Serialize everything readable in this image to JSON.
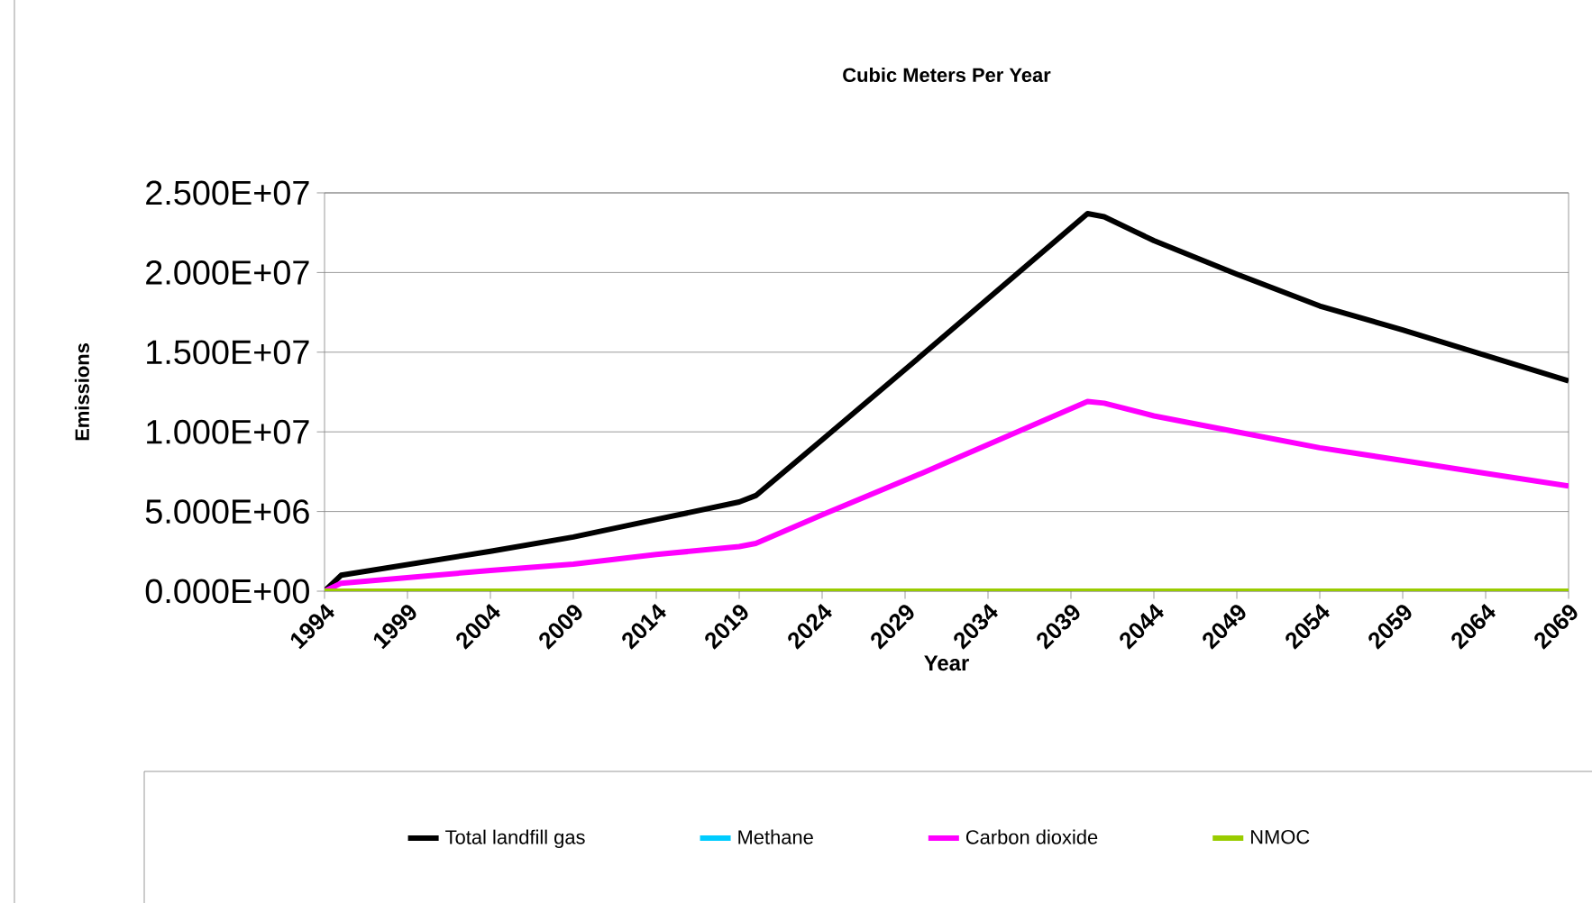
{
  "chart_data": {
    "type": "line",
    "title": "Cubic Meters Per Year",
    "xlabel": "Year",
    "ylabel": "Emissions",
    "xlim": [
      1994,
      2069
    ],
    "xticks": [
      1994,
      1999,
      2004,
      2009,
      2014,
      2019,
      2024,
      2029,
      2034,
      2039,
      2044,
      2049,
      2054,
      2059,
      2064,
      2069
    ],
    "ylim": [
      0,
      25000000
    ],
    "yticks": [
      {
        "value": 0,
        "label": "0.000E+00"
      },
      {
        "value": 5000000,
        "label": "5.000E+06"
      },
      {
        "value": 10000000,
        "label": "1.000E+07"
      },
      {
        "value": 15000000,
        "label": "1.500E+07"
      },
      {
        "value": 20000000,
        "label": "2.000E+07"
      },
      {
        "value": 25000000,
        "label": "2.500E+07"
      }
    ],
    "grid": "y",
    "legend": "bottom",
    "marker": "none",
    "line_style": "solid",
    "series": [
      {
        "name": "Total landfill gas",
        "color": "#000000",
        "x": [
          1994,
          1995,
          2004,
          2009,
          2014,
          2019,
          2020,
          2024,
          2030,
          2040,
          2041,
          2044,
          2049,
          2054,
          2059,
          2064,
          2069
        ],
        "values": [
          0,
          1000000,
          2500000,
          3400000,
          4500000,
          5600000,
          6000000,
          9500000,
          14800000,
          23700000,
          23500000,
          22000000,
          19900000,
          17900000,
          16400000,
          14800000,
          13200000
        ]
      },
      {
        "name": "Methane",
        "color": "#00ccff"
      },
      {
        "name": "Carbon dioxide",
        "color": "#ff00ff",
        "x": [
          1994,
          1995,
          2004,
          2009,
          2014,
          2019,
          2020,
          2024,
          2030,
          2040,
          2041,
          2044,
          2049,
          2054,
          2059,
          2064,
          2069
        ],
        "values": [
          0,
          500000,
          1300000,
          1700000,
          2300000,
          2800000,
          3000000,
          4800000,
          7400000,
          11900000,
          11800000,
          11000000,
          10000000,
          9000000,
          8200000,
          7400000,
          6600000
        ]
      },
      {
        "name": "NMOC",
        "color": "#99cc00",
        "x": [
          1994,
          2020,
          2040,
          2069
        ],
        "values": [
          0,
          0,
          0,
          0
        ]
      }
    ]
  }
}
